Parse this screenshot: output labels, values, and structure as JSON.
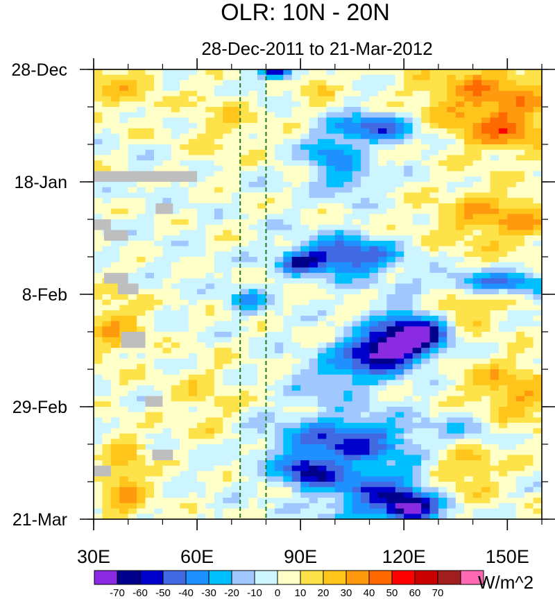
{
  "chart_data": {
    "type": "heatmap",
    "title": "OLR: 10N - 20N",
    "subtitle": "28-Dec-2011 to 21-Mar-2012",
    "x_axis": {
      "range": [
        30,
        160
      ],
      "ticks": [
        30,
        60,
        90,
        120,
        150
      ],
      "tick_labels": [
        "30E",
        "60E",
        "90E",
        "120E",
        "150E"
      ],
      "minor_step": 10
    },
    "y_axis": {
      "range_days": [
        0,
        84
      ],
      "ticks": [
        0,
        21,
        42,
        63,
        84
      ],
      "tick_labels": [
        "28-Dec",
        "18-Jan",
        "8-Feb",
        "29-Feb",
        "21-Mar"
      ],
      "minor_step": 7,
      "direction": "time increases downward"
    },
    "reference_lines": [
      {
        "lon": 72.5,
        "style": "dashed",
        "color": "#1f7a1f"
      },
      {
        "lon": 80,
        "style": "dashed",
        "color": "#1f7a1f"
      }
    ],
    "colorbar": {
      "units": "W/m^2",
      "levels": [
        -70,
        -60,
        -50,
        -40,
        -30,
        -20,
        -10,
        0,
        10,
        20,
        30,
        40,
        50,
        60,
        70
      ],
      "colors": [
        "#8a2be2",
        "#00008b",
        "#0000cd",
        "#4169e1",
        "#1e90ff",
        "#00bfff",
        "#a0c8ff",
        "#cdf5ff",
        "#ffffc8",
        "#fde24a",
        "#ffc51b",
        "#ff9a0e",
        "#ff6a00",
        "#ff0000",
        "#c80000",
        "#a01e1e",
        "#ff69b4"
      ]
    },
    "missing_color": "#bebebe",
    "field_description": "OLR anomaly averaged 10N-20N; eastward-propagating negative anomalies (convection) east of 85E, positive anomalies west",
    "anomaly_centers": [
      {
        "lon": 83,
        "day": 0.5,
        "val": -65,
        "sx": 3,
        "sy": 0.9
      },
      {
        "lon": 78,
        "day": 3,
        "val": -15,
        "sx": 3,
        "sy": 1.5
      },
      {
        "lon": 111,
        "day": 11,
        "val": -45,
        "sx": 9,
        "sy": 2
      },
      {
        "lon": 99,
        "day": 16,
        "val": -35,
        "sx": 5,
        "sy": 2.5
      },
      {
        "lon": 104,
        "day": 21,
        "val": -25,
        "sx": 5,
        "sy": 2
      },
      {
        "lon": 103,
        "day": 35,
        "val": -55,
        "sx": 10,
        "sy": 2.5
      },
      {
        "lon": 90,
        "day": 36,
        "val": -40,
        "sx": 4,
        "sy": 1.3
      },
      {
        "lon": 75,
        "day": 43,
        "val": -30,
        "sx": 4,
        "sy": 1.5
      },
      {
        "lon": 145,
        "day": 40,
        "val": -45,
        "sx": 12,
        "sy": 1.5
      },
      {
        "lon": 120,
        "day": 49,
        "val": -55,
        "sx": 6,
        "sy": 3
      },
      {
        "lon": 113,
        "day": 53,
        "val": -70,
        "sx": 8,
        "sy": 2.5
      },
      {
        "lon": 128,
        "day": 49,
        "val": -45,
        "sx": 5,
        "sy": 2
      },
      {
        "lon": 100,
        "day": 58,
        "val": -25,
        "sx": 8,
        "sy": 2.5
      },
      {
        "lon": 103,
        "day": 69,
        "val": -50,
        "sx": 13,
        "sy": 3
      },
      {
        "lon": 92,
        "day": 75,
        "val": -55,
        "sx": 6,
        "sy": 2
      },
      {
        "lon": 112,
        "day": 79,
        "val": -45,
        "sx": 11,
        "sy": 4
      },
      {
        "lon": 122,
        "day": 82,
        "val": -60,
        "sx": 5,
        "sy": 2
      },
      {
        "lon": 140,
        "day": 67,
        "val": -25,
        "sx": 8,
        "sy": 3
      },
      {
        "lon": 145,
        "day": 5,
        "val": 35,
        "sx": 15,
        "sy": 5
      },
      {
        "lon": 150,
        "day": 12,
        "val": 25,
        "sx": 10,
        "sy": 3
      },
      {
        "lon": 148,
        "day": 28,
        "val": 30,
        "sx": 14,
        "sy": 4
      },
      {
        "lon": 137,
        "day": 44,
        "val": 25,
        "sx": 8,
        "sy": 3
      },
      {
        "lon": 150,
        "day": 61,
        "val": 30,
        "sx": 10,
        "sy": 5
      },
      {
        "lon": 138,
        "day": 74,
        "val": 25,
        "sx": 8,
        "sy": 4
      },
      {
        "lon": 38,
        "day": 3,
        "val": 20,
        "sx": 8,
        "sy": 4
      },
      {
        "lon": 36,
        "day": 48,
        "val": 25,
        "sx": 6,
        "sy": 5
      },
      {
        "lon": 39,
        "day": 77,
        "val": 30,
        "sx": 5,
        "sy": 6
      },
      {
        "lon": 68,
        "day": 10,
        "val": 15,
        "sx": 8,
        "sy": 5
      },
      {
        "lon": 62,
        "day": 62,
        "val": 15,
        "sx": 7,
        "sy": 5
      },
      {
        "lon": 94,
        "day": 3,
        "val": 15,
        "sx": 4,
        "sy": 4
      }
    ],
    "missing_regions": [
      {
        "lon": [
          30,
          60
        ],
        "day": [
          19,
          21
        ]
      },
      {
        "lon": [
          48,
          53
        ],
        "day": [
          25,
          27
        ]
      },
      {
        "lon": [
          30,
          35
        ],
        "day": [
          28,
          30
        ]
      },
      {
        "lon": [
          33,
          40
        ],
        "day": [
          30,
          32
        ]
      },
      {
        "lon": [
          33,
          40
        ],
        "day": [
          38,
          40
        ]
      },
      {
        "lon": [
          37,
          43
        ],
        "day": [
          40,
          42
        ]
      },
      {
        "lon": [
          38,
          45
        ],
        "day": [
          49,
          52
        ]
      },
      {
        "lon": [
          45,
          50
        ],
        "day": [
          61,
          63
        ]
      },
      {
        "lon": [
          47,
          53
        ],
        "day": [
          71,
          73
        ]
      },
      {
        "lon": [
          30,
          35
        ],
        "day": [
          74,
          76
        ]
      }
    ]
  }
}
